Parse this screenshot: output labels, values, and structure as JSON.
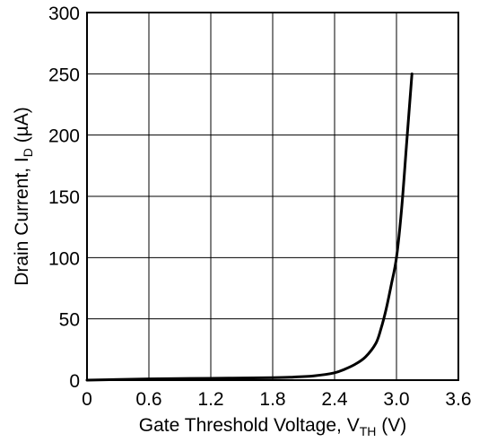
{
  "chart_data": {
    "type": "line",
    "xlabel": {
      "main": "Gate Threshold Voltage, V",
      "sub": "TH",
      "tail": " (V)"
    },
    "ylabel": {
      "main": "Drain Current, I",
      "sub": "D",
      "tail": " (µA)"
    },
    "xlim": [
      0,
      3.6
    ],
    "ylim": [
      0,
      300
    ],
    "x_ticks": [
      "0",
      "0.6",
      "1.2",
      "1.8",
      "2.4",
      "3.0",
      "3.6"
    ],
    "y_ticks": [
      "0",
      "50",
      "100",
      "150",
      "200",
      "250",
      "300"
    ],
    "grid": true,
    "line_color": "#000000",
    "series": [
      {
        "x": [
          0,
          0.6,
          1.2,
          1.8,
          2.0,
          2.2,
          2.4,
          2.5,
          2.6,
          2.7,
          2.8,
          2.85,
          2.9,
          2.95,
          3.0,
          3.05,
          3.1,
          3.15
        ],
        "y": [
          0,
          1,
          1.5,
          2,
          2.5,
          3.5,
          6,
          9,
          13,
          19,
          30,
          42,
          58,
          78,
          100,
          140,
          195,
          250
        ]
      }
    ]
  }
}
